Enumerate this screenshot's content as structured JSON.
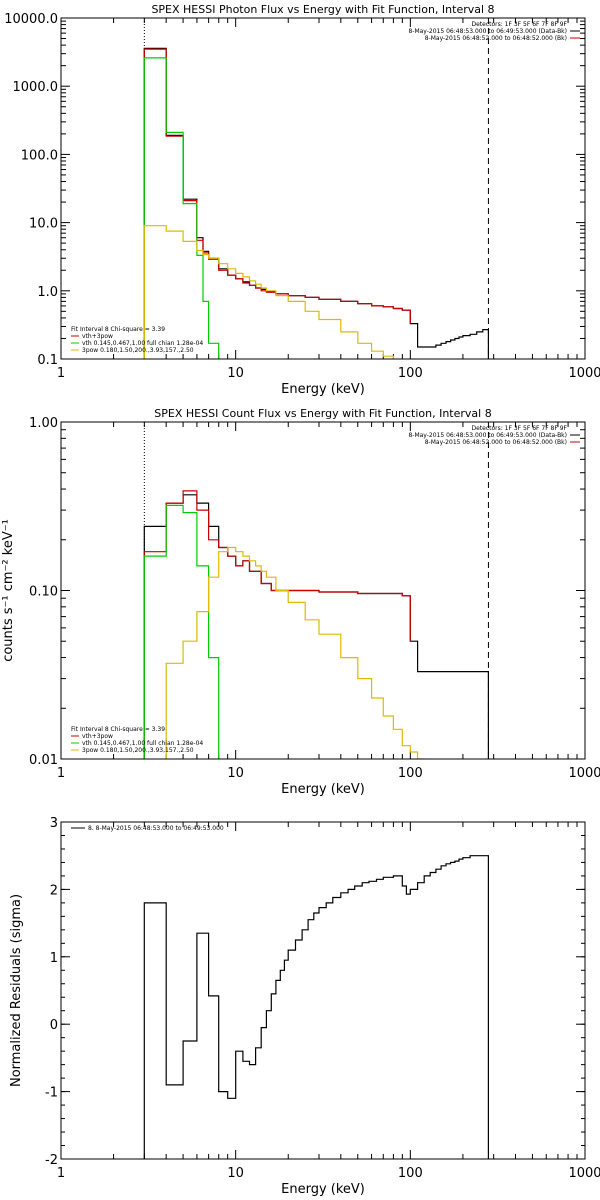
{
  "chart_data": [
    {
      "type": "line",
      "title": "SPEX HESSI Photon Flux vs Energy with Fit Function, Interval 8",
      "xlabel": "Energy (keV)",
      "ylabel": "",
      "xscale": "log",
      "yscale": "log",
      "xlim": [
        1,
        1000
      ],
      "ylim": [
        0.1,
        10000
      ],
      "x_ticks": [
        "1",
        "10",
        "100",
        "1000"
      ],
      "y_ticks": [
        "0.1",
        "1.0",
        "10.0",
        "100.0",
        "1000.0",
        "10000.0"
      ],
      "vlines": [
        {
          "x": 3,
          "style": "dotted"
        },
        {
          "x": 280,
          "style": "dashed"
        }
      ],
      "top_legend": [
        {
          "text": "Detectors: 1F 3F 5F 6F 7F 8F 9F",
          "color": ""
        },
        {
          "text": "8-May-2015 06:48:53.000 to 06:49:53.000 (Data-Bk)",
          "color": "#000000"
        },
        {
          "text": "8-May-2015 06:48:52.000 to 06:48:52.000 (Bk)",
          "color": "#cc0000"
        }
      ],
      "fit_legend": [
        {
          "text": "Fit Interval 8    Chi-square = 3.39",
          "color": ""
        },
        {
          "text": "vth+3pow",
          "color": "#cc0000"
        },
        {
          "text": "vth 0.145,0.467,1.00  full chian 1.28e-04",
          "color": "#00cc00"
        },
        {
          "text": "3pow 0.180,1.50,200.,3.93,157.,2.50",
          "color": "#ddbb00"
        }
      ],
      "series": [
        {
          "color": "#000000",
          "x": [
            3,
            4,
            5,
            6,
            6.5,
            7,
            8,
            9,
            10,
            11,
            12,
            13,
            14,
            15,
            17,
            20,
            25,
            30,
            40,
            50,
            60,
            70,
            80,
            90,
            100,
            110,
            130,
            140,
            150,
            160,
            170,
            180,
            190,
            200,
            220,
            240,
            260,
            280
          ],
          "y": [
            3600,
            190,
            22,
            6,
            3.8,
            3.0,
            2.1,
            1.7,
            1.5,
            1.35,
            1.2,
            1.1,
            1.05,
            0.98,
            0.9,
            0.85,
            0.8,
            0.75,
            0.7,
            0.65,
            0.6,
            0.58,
            0.55,
            0.52,
            0.33,
            0.15,
            0.15,
            0.16,
            0.17,
            0.18,
            0.19,
            0.2,
            0.21,
            0.22,
            0.23,
            0.25,
            0.27,
            0.1
          ]
        },
        {
          "color": "#cc0000",
          "x": [
            3,
            4,
            5,
            6,
            6.5,
            7,
            8,
            9,
            10,
            11,
            12,
            13,
            14,
            15,
            17,
            20,
            25,
            30,
            40,
            50,
            60,
            70,
            80,
            90,
            100
          ],
          "y": [
            3500,
            185,
            21,
            5.5,
            3.6,
            2.9,
            2.0,
            1.7,
            1.5,
            1.3,
            1.2,
            1.1,
            1.0,
            0.95,
            0.9,
            0.85,
            0.8,
            0.75,
            0.7,
            0.65,
            0.6,
            0.58,
            0.55,
            0.52,
            0.33
          ]
        },
        {
          "color": "#00cc00",
          "x": [
            3,
            4,
            5,
            6,
            6.5,
            7,
            8
          ],
          "y": [
            2600,
            210,
            19,
            3.3,
            0.7,
            0.17,
            0.1
          ]
        },
        {
          "color": "#ddbb00",
          "x": [
            3,
            4,
            5,
            6,
            6.5,
            7,
            8,
            9,
            10,
            11,
            12,
            13,
            14,
            15,
            17,
            20,
            25,
            30,
            40,
            50,
            60,
            70,
            80
          ],
          "y": [
            9,
            7.5,
            5.3,
            3.9,
            3.4,
            3.0,
            2.5,
            2.1,
            1.8,
            1.6,
            1.4,
            1.25,
            1.1,
            1.0,
            0.85,
            0.7,
            0.5,
            0.38,
            0.25,
            0.17,
            0.13,
            0.11,
            0.1
          ]
        }
      ]
    },
    {
      "type": "line",
      "title": "SPEX HESSI Count Flux vs Energy with Fit Function, Interval 8",
      "xlabel": "Energy (keV)",
      "ylabel": "counts s⁻¹ cm⁻² keV⁻¹",
      "xscale": "log",
      "yscale": "log",
      "xlim": [
        1,
        1000
      ],
      "ylim": [
        0.01,
        1
      ],
      "x_ticks": [
        "1",
        "10",
        "100",
        "1000"
      ],
      "y_ticks": [
        "0.01",
        "0.10",
        "1.00"
      ],
      "vlines": [
        {
          "x": 3,
          "style": "dotted"
        },
        {
          "x": 280,
          "style": "dashed"
        }
      ],
      "top_legend": [
        {
          "text": "Detectors: 1F 3F 5F 6F 7F 8F 9F",
          "color": ""
        },
        {
          "text": "8-May-2015 06:48:53.000 to 06:49:53.000 (Data-Bk)",
          "color": "#000000"
        },
        {
          "text": "8-May-2015 06:48:52.000 to 06:48:52.000 (Bk)",
          "color": "#cc0000"
        }
      ],
      "fit_legend": [
        {
          "text": "Fit Interval 8    Chi-square = 3.39",
          "color": ""
        },
        {
          "text": "vth+3pow",
          "color": "#cc0000"
        },
        {
          "text": "vth 0.145,0.467,1.00  full chian 1.28e-04",
          "color": "#00cc00"
        },
        {
          "text": "3pow 0.180,1.50,200.,3.93,157.,2.50",
          "color": "#ddbb00"
        }
      ],
      "series": [
        {
          "color": "#000000",
          "x": [
            3,
            4,
            5,
            6,
            7,
            8,
            9,
            10,
            11,
            12,
            14,
            16,
            20,
            30,
            50,
            90,
            100,
            110,
            280
          ],
          "y": [
            0.24,
            0.33,
            0.37,
            0.33,
            0.24,
            0.18,
            0.16,
            0.14,
            0.15,
            0.13,
            0.11,
            0.1,
            0.1,
            0.098,
            0.096,
            0.093,
            0.05,
            0.033,
            0.01
          ]
        },
        {
          "color": "#cc0000",
          "x": [
            3,
            4,
            5,
            6,
            7,
            8,
            9,
            10,
            11,
            12,
            14,
            16,
            20,
            30,
            50,
            90,
            100
          ],
          "y": [
            0.17,
            0.33,
            0.39,
            0.3,
            0.2,
            0.18,
            0.16,
            0.14,
            0.15,
            0.13,
            0.11,
            0.1,
            0.1,
            0.098,
            0.096,
            0.093,
            0.05
          ]
        },
        {
          "color": "#00cc00",
          "x": [
            3,
            4,
            5,
            6,
            7,
            8
          ],
          "y": [
            0.16,
            0.32,
            0.29,
            0.14,
            0.04,
            0.01
          ]
        },
        {
          "color": "#ddbb00",
          "x": [
            4,
            5,
            6,
            7,
            8,
            9,
            10,
            11,
            12,
            13,
            14,
            15,
            17,
            20,
            25,
            30,
            40,
            50,
            60,
            70,
            80,
            90,
            100,
            110,
            120
          ],
          "y": [
            0.037,
            0.05,
            0.075,
            0.12,
            0.17,
            0.18,
            0.17,
            0.16,
            0.15,
            0.14,
            0.13,
            0.12,
            0.1,
            0.085,
            0.067,
            0.055,
            0.04,
            0.03,
            0.023,
            0.018,
            0.015,
            0.012,
            0.011,
            0.01,
            0.01
          ]
        }
      ]
    },
    {
      "type": "line",
      "title": "",
      "xlabel": "Energy (keV)",
      "ylabel": "Normalized Residuals (sigma)",
      "xscale": "log",
      "yscale": "linear",
      "xlim": [
        1,
        1000
      ],
      "ylim": [
        -2,
        3
      ],
      "x_ticks": [
        "1",
        "10",
        "100",
        "1000"
      ],
      "y_ticks": [
        "-2",
        "-1",
        "0",
        "1",
        "2",
        "3"
      ],
      "vlines": [],
      "top_legend": [
        {
          "text": "8.  8-May-2015 06:48:53.000 to 06:49:53.000",
          "color": "#000000"
        }
      ],
      "fit_legend": [],
      "series": [
        {
          "color": "#000000",
          "x": [
            3,
            4,
            5,
            6,
            7,
            8,
            9,
            10,
            11,
            12,
            13,
            14,
            15,
            16,
            17,
            18,
            19,
            20,
            22,
            24,
            26,
            28,
            30,
            33,
            36,
            40,
            44,
            48,
            53,
            58,
            64,
            70,
            80,
            90,
            95,
            100,
            110,
            120,
            130,
            140,
            150,
            160,
            170,
            180,
            190,
            200,
            220,
            240,
            260,
            280
          ],
          "y": [
            1.8,
            -0.9,
            -0.25,
            1.35,
            0.42,
            -1.0,
            -1.1,
            -0.4,
            -0.55,
            -0.6,
            -0.35,
            -0.05,
            0.2,
            0.45,
            0.65,
            0.8,
            0.95,
            1.1,
            1.25,
            1.4,
            1.55,
            1.65,
            1.73,
            1.8,
            1.88,
            1.95,
            2.0,
            2.05,
            2.1,
            2.12,
            2.15,
            2.18,
            2.2,
            2.05,
            1.93,
            2.0,
            2.1,
            2.2,
            2.25,
            2.3,
            2.35,
            2.38,
            2.4,
            2.42,
            2.45,
            2.47,
            2.5,
            2.5,
            2.5,
            -2
          ]
        }
      ]
    }
  ]
}
